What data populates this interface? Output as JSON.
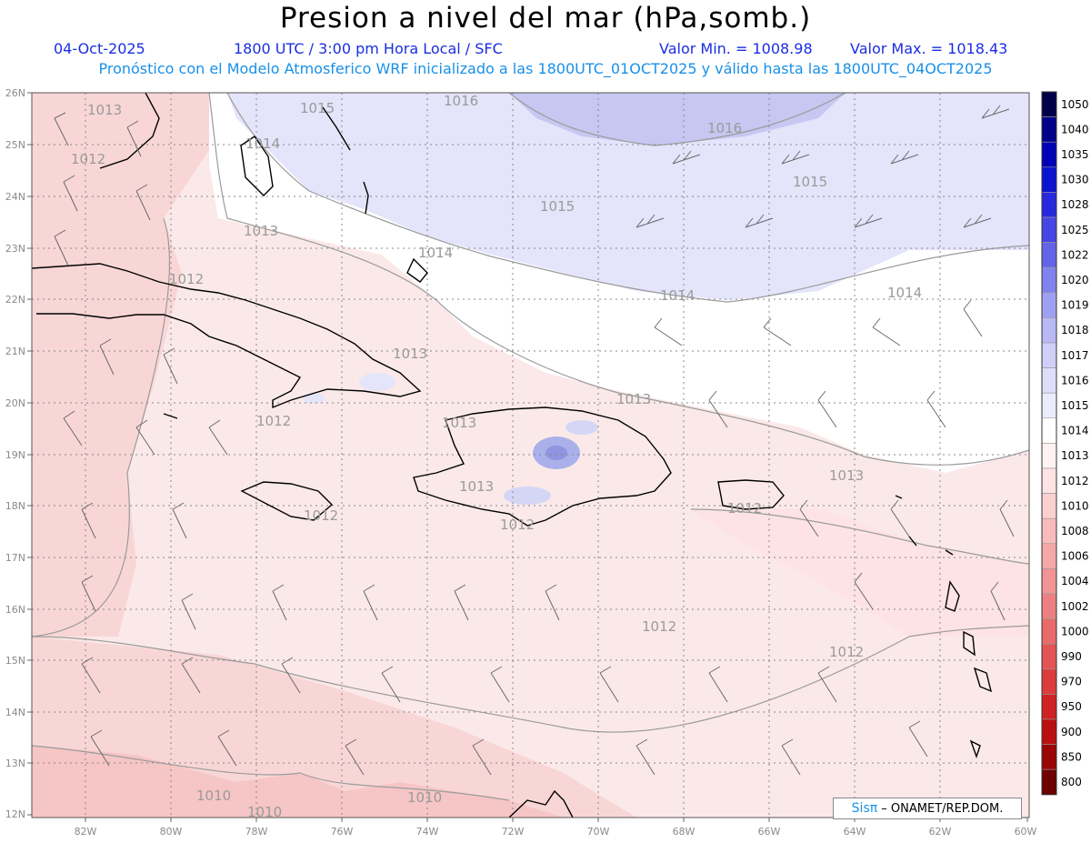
{
  "header": {
    "title": "Presion a nivel del mar (hPa,somb.)",
    "date": "04-Oct-2025",
    "time": "1800 UTC / 3:00 pm Hora Local / SFC",
    "min": "Valor Min. = 1008.98",
    "max": "Valor Max. = 1018.43",
    "model_note": "Pronóstico con el Modelo Atmosferico WRF inicializado a las 1800UTC_01OCT2025 y válido hasta las  1800UTC_04OCT2025"
  },
  "map": {
    "lat_labels": [
      "26N",
      "25N",
      "24N",
      "23N",
      "22N",
      "21N",
      "20N",
      "19N",
      "18N",
      "17N",
      "16N",
      "15N",
      "14N",
      "13N",
      "12N"
    ],
    "lon_labels": [
      "82W",
      "80W",
      "78W",
      "76W",
      "74W",
      "72W",
      "70W",
      "68W",
      "66W",
      "64W",
      "62W",
      "60W"
    ],
    "contour_labels": [
      "1013",
      "1012",
      "1015",
      "1014",
      "1016",
      "1016",
      "1015",
      "1015",
      "1013",
      "1014",
      "1014",
      "1014",
      "1012",
      "1013",
      "1013",
      "1013",
      "1012",
      "1012",
      "1013",
      "1012",
      "1012",
      "1013",
      "1012",
      "1012",
      "1010",
      "1010",
      "1010"
    ],
    "colors": {
      "low": "#f9d0d0",
      "mid": "#fde8e8",
      "neutral": "#ffffff",
      "high": "#e2e2fb",
      "higher": "#c8c8f2"
    }
  },
  "legend": {
    "levels": [
      "1050",
      "1040",
      "1035",
      "1030",
      "1028",
      "1025",
      "1022",
      "1020",
      "1019",
      "1018",
      "1017",
      "1016",
      "1015",
      "1014",
      "1013",
      "1012",
      "1010",
      "1008",
      "1006",
      "1004",
      "1002",
      "1000",
      "990",
      "970",
      "950",
      "900",
      "850",
      "800"
    ],
    "colors": [
      "#00004a",
      "#000088",
      "#0000b5",
      "#0a14d0",
      "#2828dd",
      "#4646e4",
      "#6464e8",
      "#8282ee",
      "#a0a0f2",
      "#b8b8f5",
      "#cfcff8",
      "#dedefb",
      "#ececfd",
      "#ffffff",
      "#fff2f2",
      "#fde3e3",
      "#fbd0d0",
      "#f8bcbc",
      "#f5a8a8",
      "#f09494",
      "#ec8080",
      "#e86a6a",
      "#e35454",
      "#dc3c3c",
      "#cf2222",
      "#bb0f0f",
      "#9a0505",
      "#6e0000"
    ]
  },
  "credit": {
    "brand": "Sisπ",
    "org": " – ONAMET/REP.DOM."
  }
}
